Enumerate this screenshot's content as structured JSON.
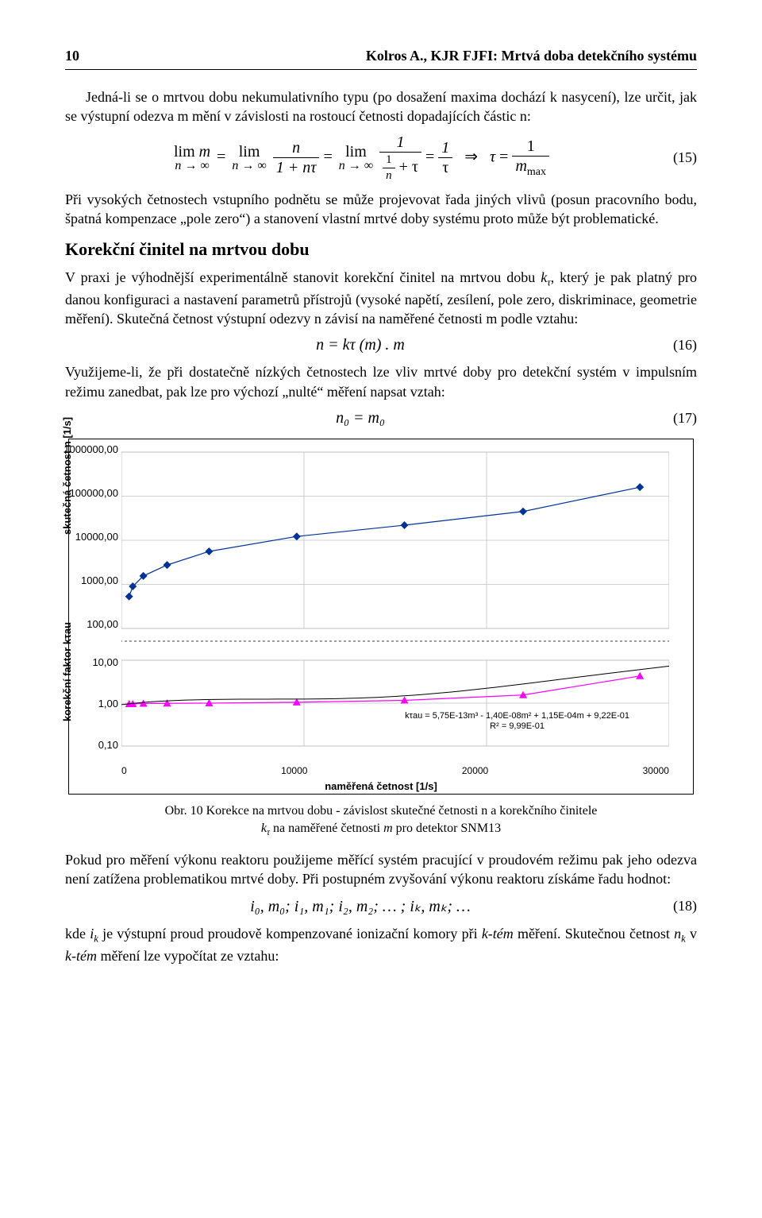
{
  "header": {
    "page_number": "10",
    "running_title": "Kolros A., KJR FJFI: Mrtvá doba detekčního systému"
  },
  "text": {
    "p1": "Jedná-li se o mrtvou dobu nekumulativního typu (po dosažení maxima dochází k nasycení), lze určit, jak se výstupní odezva m mění v závislosti na rostoucí četnosti dopadajících částic n:",
    "eq15_num": "(15)",
    "p2": "Při vysokých četnostech vstupního podnětu se může projevovat řada jiných vlivů (posun pracovního bodu, špatná kompenzace „pole zero“) a stanovení vlastní mrtvé doby systému proto může být problematické.",
    "section_title": "Korekční činitel na mrtvou dobu",
    "p3a": "V praxi je výhodnější experimentálně stanovit korekční činitel na mrtvou dobu ",
    "p3b": ", který je pak platný pro danou konfiguraci a nastavení parametrů přístrojů (vysoké napětí, zesílení, pole zero, diskriminace, geometrie měření). Skutečná četnost výstupní odezvy n závisí na naměřené četnosti m podle vztahu:",
    "eq16": "n = kτ (m) . m",
    "eq16_num": "(16)",
    "p4": "Využijeme-li, že při dostatečně nízkých četnostech lze vliv mrtvé doby pro detekční systém v impulsním režimu zanedbat, pak lze pro výchozí „nulté“ měření napsat vztah:",
    "eq17": "n₀ = m₀",
    "eq17_num": "(17)",
    "caption_line1": "Obr. 10  Korekce na mrtvou dobu - závislost skutečné četnosti n a korekčního činitele",
    "caption_line2": "kτ na naměřené četnosti m pro detektor SNM13",
    "p5": "Pokud pro měření výkonu reaktoru použijeme měřící systém pracující v proudovém režimu pak jeho odezva není zatížena problematikou mrtvé doby. Při postupném zvyšování výkonu reaktoru získáme řadu hodnot:",
    "eq18": "i₀, m₀; i₁, m₁; i₂, m₂; … ; iₖ, mₖ; …",
    "eq18_num": "(18)",
    "p6": "kde iₖ je výstupní proud proudově kompenzované ionizační komory při k-tém měření. Skutečnou četnost nₖ v k-tém měření lze vypočítat ze vztahu:"
  },
  "chart": {
    "background_color": "#ffffff",
    "grid_color": "#c0c0c0",
    "axis_color": "#000000",
    "x_label": "naměřená četnost [1/s]",
    "y1_label": "skutečná četnost n [1/s]",
    "y2_label": "korekční faktor kτau",
    "x_ticks": [
      "0",
      "10000",
      "20000",
      "30000"
    ],
    "y1_ticks": [
      "1000000,00",
      "100000,00",
      "10000,00",
      "1000,00",
      "100,00"
    ],
    "y2_ticks": [
      "10,00",
      "1,00",
      "0,10"
    ],
    "top_series": {
      "type": "scatter-line",
      "marker": "diamond",
      "marker_color": "#003399",
      "line_color": "#003399",
      "line_width": 1.2,
      "points": [
        {
          "x": 420,
          "y": 530
        },
        {
          "x": 620,
          "y": 900
        },
        {
          "x": 1200,
          "y": 1550
        },
        {
          "x": 2500,
          "y": 2750
        },
        {
          "x": 4800,
          "y": 5600
        },
        {
          "x": 9600,
          "y": 12200
        },
        {
          "x": 15500,
          "y": 22000
        },
        {
          "x": 22000,
          "y": 45000
        },
        {
          "x": 28400,
          "y": 160000
        }
      ]
    },
    "bottom_series": {
      "type": "scatter-line",
      "marker": "triangle",
      "marker_color": "#ff00ff",
      "line_color": "#ff00ff",
      "line_width": 1.2,
      "points": [
        {
          "x": 420,
          "y": 0.96
        },
        {
          "x": 620,
          "y": 0.96
        },
        {
          "x": 1200,
          "y": 0.98
        },
        {
          "x": 2500,
          "y": 0.99
        },
        {
          "x": 4800,
          "y": 1.0
        },
        {
          "x": 9600,
          "y": 1.05
        },
        {
          "x": 15500,
          "y": 1.16
        },
        {
          "x": 22000,
          "y": 1.55
        },
        {
          "x": 28400,
          "y": 4.3
        }
      ]
    },
    "fit_line1": "kτau = 5,75E-13m³ - 1,40E-08m² + 1,15E-04m + 9,22E-01",
    "fit_line2": "R² = 9,99E-01",
    "x_min": 0,
    "x_max": 30000,
    "top_ylog_min_exp": 2,
    "top_ylog_max_exp": 6,
    "bot_ylog_min_exp": -1,
    "bot_ylog_max_exp": 1
  }
}
